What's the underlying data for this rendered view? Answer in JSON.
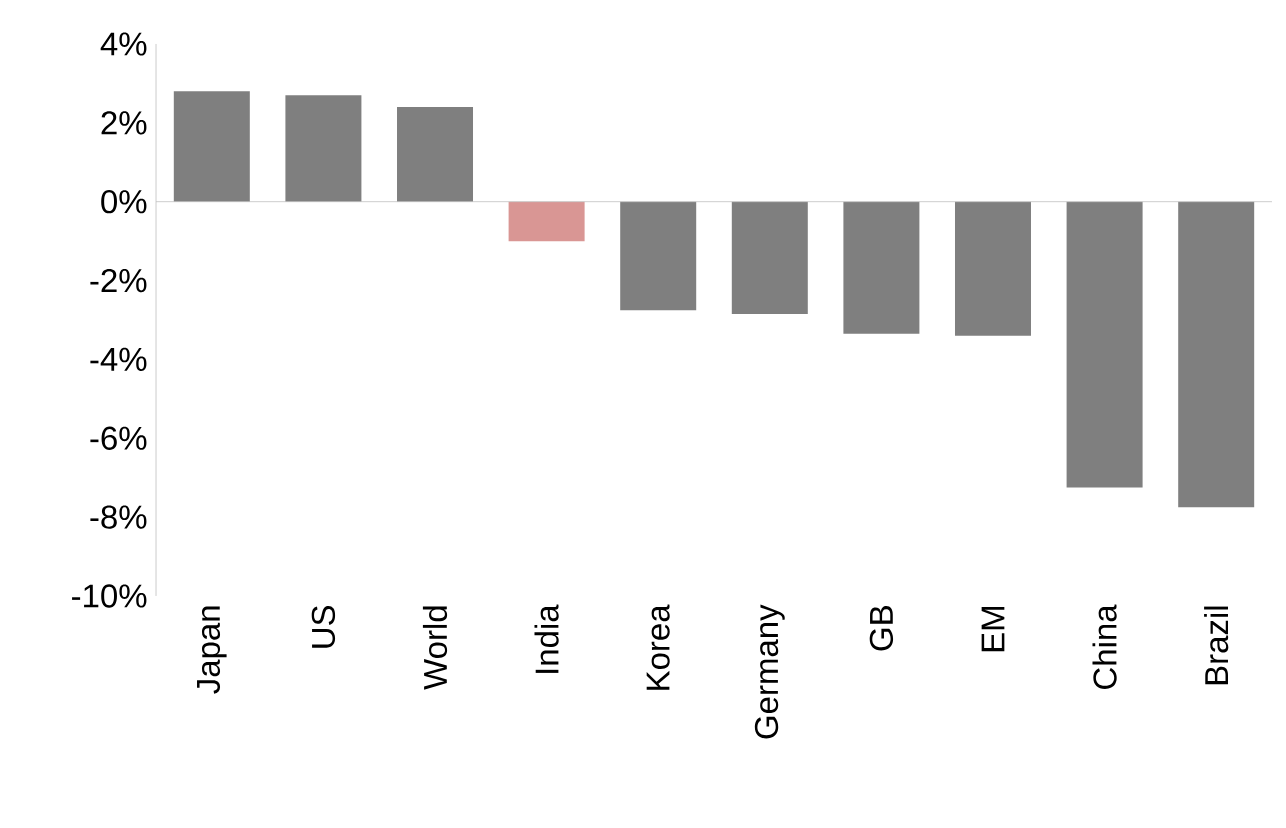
{
  "chart_data": {
    "type": "bar",
    "categories": [
      "Japan",
      "US",
      "World",
      "India",
      "Korea",
      "Germany",
      "GB",
      "EM",
      "China",
      "Brazil"
    ],
    "values": [
      2.8,
      2.7,
      2.4,
      -1.0,
      -2.75,
      -2.85,
      -3.35,
      -3.4,
      -7.25,
      -7.75
    ],
    "colors": [
      "#7f7f7f",
      "#7f7f7f",
      "#7f7f7f",
      "#d99694",
      "#7f7f7f",
      "#7f7f7f",
      "#7f7f7f",
      "#7f7f7f",
      "#7f7f7f",
      "#7f7f7f"
    ],
    "ylim": [
      -10,
      4
    ],
    "yticks": [
      {
        "value": 4,
        "label": "4%"
      },
      {
        "value": 2,
        "label": "2%"
      },
      {
        "value": 0,
        "label": "0%"
      },
      {
        "value": -2,
        "label": "-2%"
      },
      {
        "value": -4,
        "label": "-4%"
      },
      {
        "value": -6,
        "label": "-6%"
      },
      {
        "value": -8,
        "label": "-8%"
      },
      {
        "value": -10,
        "label": "-10%"
      }
    ]
  }
}
